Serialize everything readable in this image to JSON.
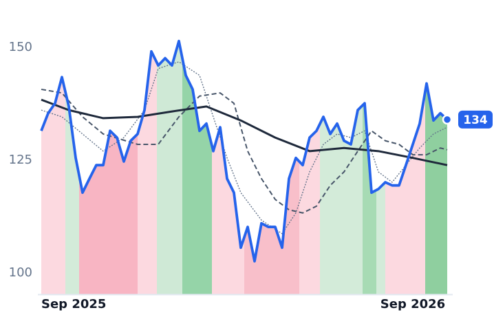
{
  "chart_data": {
    "type": "line",
    "xlim": [
      0,
      59.5
    ],
    "ylim": [
      95.2,
      160.5
    ],
    "yticks": [
      100,
      125,
      150
    ],
    "xticks": [
      {
        "value": 0,
        "label": "Sep 2025"
      },
      {
        "value": 54,
        "label": "Sep 2026"
      }
    ],
    "bands": [
      {
        "start": 0,
        "end": 3.5,
        "color": "#fcd9e0"
      },
      {
        "start": 3.5,
        "end": 5.5,
        "color": "#d3ebd9"
      },
      {
        "start": 5.5,
        "end": 14,
        "color": "#f8b5c3"
      },
      {
        "start": 14,
        "end": 16.8,
        "color": "#fcd9e0"
      },
      {
        "start": 16.8,
        "end": 20.5,
        "color": "#cfe9d6"
      },
      {
        "start": 20.5,
        "end": 24.8,
        "color": "#95d4a8"
      },
      {
        "start": 24.8,
        "end": 29.5,
        "color": "#fcd9e0"
      },
      {
        "start": 29.5,
        "end": 37.5,
        "color": "#f8bfca"
      },
      {
        "start": 37.5,
        "end": 40.5,
        "color": "#fcd9e0"
      },
      {
        "start": 40.5,
        "end": 46.7,
        "color": "#d3ebd9"
      },
      {
        "start": 46.7,
        "end": 48.7,
        "color": "#a7dbb4"
      },
      {
        "start": 48.7,
        "end": 50,
        "color": "#d3ebd9"
      },
      {
        "start": 50,
        "end": 55.8,
        "color": "#fcd9e0"
      },
      {
        "start": 55.8,
        "end": 59.5,
        "color": "#8fcf9f"
      }
    ],
    "series": [
      {
        "color": "#2563eb",
        "dash": "solid",
        "x": [
          0,
          1,
          2,
          3,
          4,
          5,
          6,
          7,
          8,
          9,
          10,
          11,
          12,
          13,
          14,
          15,
          16,
          17,
          18,
          19,
          20,
          21,
          22,
          23,
          24,
          25,
          26,
          27,
          28,
          29,
          30,
          31,
          32,
          33,
          34,
          35,
          36,
          37,
          38,
          39,
          40,
          41,
          42,
          43,
          44,
          45,
          46,
          47,
          48,
          49,
          50,
          51,
          52,
          53,
          54,
          55,
          56,
          57,
          58,
          59
        ],
        "values": [
          131.5,
          135.4,
          137.6,
          143.4,
          136.9,
          125.5,
          117.8,
          120.9,
          123.9,
          123.9,
          131.5,
          130.0,
          124.7,
          129.3,
          130.8,
          136.1,
          149.1,
          146.0,
          147.6,
          146.0,
          151.4,
          143.8,
          140.7,
          131.5,
          133.1,
          127.0,
          132.3,
          120.9,
          117.8,
          105.6,
          110.2,
          102.6,
          111.0,
          110.2,
          110.2,
          105.6,
          120.9,
          125.5,
          123.9,
          130.0,
          131.5,
          134.6,
          130.8,
          133.1,
          129.3,
          128.5,
          136.1,
          137.6,
          117.8,
          118.6,
          120.1,
          119.4,
          119.4,
          123.9,
          128.5,
          133.1,
          142.0,
          133.8,
          135.4,
          134
        ]
      },
      {
        "color": "#1e293b",
        "dash": "solid",
        "x": [
          0,
          4,
          9,
          14,
          19,
          24,
          29,
          34,
          39,
          44,
          49,
          54,
          59
        ],
        "values": [
          138.4,
          136.1,
          134.3,
          134.6,
          135.8,
          136.9,
          133.8,
          130.0,
          127.0,
          127.7,
          127.0,
          125.5,
          123.9
        ]
      },
      {
        "color": "#475569",
        "dash": "dashed",
        "x": [
          0,
          3,
          6,
          9,
          14,
          17,
          20,
          23,
          26,
          28,
          30,
          32,
          34,
          36,
          38,
          40,
          42,
          44,
          46,
          48,
          50,
          52,
          54,
          56,
          58,
          59
        ],
        "values": [
          140.7,
          139.9,
          134.6,
          130.8,
          128.5,
          128.5,
          134.6,
          139.2,
          139.9,
          137.6,
          127.0,
          120.9,
          116.3,
          114.0,
          113.3,
          114.8,
          119.4,
          122.4,
          127.0,
          131.5,
          129.3,
          128.5,
          126.2,
          126.2,
          127.7,
          127.3
        ]
      },
      {
        "color": "#64748b",
        "dash": "dotted",
        "x": [
          0,
          3,
          6,
          9,
          12,
          15,
          17,
          20,
          23,
          25,
          27,
          29,
          32,
          35,
          37,
          39,
          41,
          43,
          45,
          47,
          49,
          51,
          53,
          55,
          57,
          59
        ],
        "values": [
          136.1,
          134.6,
          130.8,
          127.0,
          130.0,
          136.1,
          145.3,
          146.8,
          143.8,
          134.6,
          125.5,
          117.8,
          111.7,
          108.7,
          113.3,
          122.4,
          128.5,
          130.8,
          130.0,
          131.5,
          122.4,
          120.1,
          123.9,
          127.7,
          130.8,
          132.3
        ]
      }
    ]
  }
}
